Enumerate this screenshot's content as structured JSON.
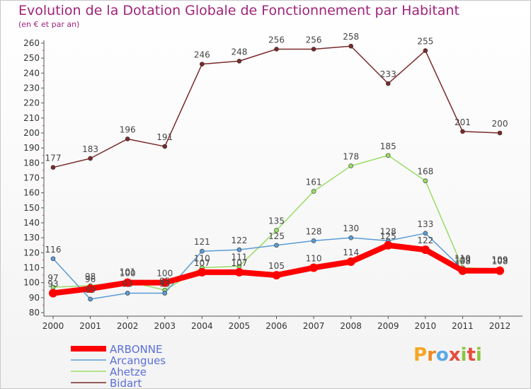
{
  "header": {
    "title": "Evolution de la Dotation Globale de Fonctionnement par Habitant",
    "subtitle": "(en € et par an)"
  },
  "logo": {
    "text": "Proxiti"
  },
  "chart_data": {
    "type": "line",
    "x": [
      "2000",
      "2001",
      "2002",
      "2003",
      "2004",
      "2005",
      "2006",
      "2007",
      "2008",
      "2009",
      "2010",
      "2011",
      "2012"
    ],
    "ylim": [
      80,
      260
    ],
    "yticks": [
      80,
      90,
      100,
      110,
      120,
      130,
      140,
      150,
      160,
      170,
      180,
      190,
      200,
      210,
      220,
      230,
      240,
      250,
      260
    ],
    "grid": false,
    "legend": "bottom-left",
    "series": [
      {
        "name": "ARBONNE",
        "color": "#ff0000",
        "width": 8,
        "values": [
          93,
          96,
          100,
          100,
          107,
          107,
          105,
          110,
          114,
          125,
          122,
          108,
          108
        ]
      },
      {
        "name": "Arcangues",
        "color": "#5b9bd5",
        "width": 1.5,
        "values": [
          116,
          89,
          93,
          93,
          121,
          122,
          125,
          128,
          130,
          128,
          133,
          109,
          109
        ]
      },
      {
        "name": "Ahetze",
        "color": "#99dd66",
        "width": 1.5,
        "values": [
          97,
          98,
          101,
          95,
          110,
          111,
          135,
          161,
          178,
          185,
          168,
          110,
          109
        ]
      },
      {
        "name": "Bidart",
        "color": "#7a2a2a",
        "width": 1.5,
        "values": [
          177,
          183,
          196,
          191,
          246,
          248,
          256,
          256,
          258,
          233,
          255,
          201,
          200
        ]
      }
    ]
  }
}
